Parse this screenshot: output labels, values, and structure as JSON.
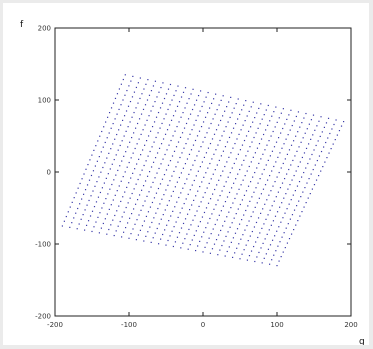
{
  "chart_data": {
    "type": "scatter",
    "title": "",
    "ylabel": "f",
    "xlabel": "g",
    "xlim": [
      -200,
      200
    ],
    "ylim": [
      -200,
      200
    ],
    "x_ticks": [
      "-200",
      "-100",
      "0",
      "100",
      "200"
    ],
    "y_ticks": [
      "200",
      "100",
      "0",
      "-100",
      "-200"
    ],
    "x_tick_values": [
      -200,
      -100,
      0,
      100,
      200
    ],
    "y_tick_values": [
      200,
      100,
      0,
      -100,
      -200
    ],
    "grid": false,
    "marker_color": "#3a3aa8",
    "lattice": {
      "corners": {
        "top_left": [
          -105,
          135
        ],
        "top_right": [
          190,
          70
        ],
        "bottom_right": [
          100,
          -130
        ],
        "bottom_left": [
          -190,
          -75
        ]
      },
      "rows": 33,
      "cols": 30
    }
  }
}
